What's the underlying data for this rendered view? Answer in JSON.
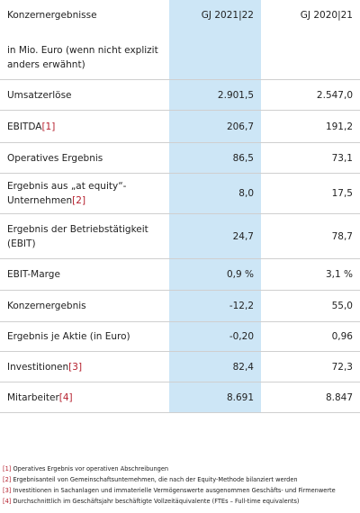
{
  "header": {
    "title": "Konzernergebnisse",
    "unit_note": "in Mio. Euro (wenn nicht explizit anders erwähnt)",
    "columns": [
      "GJ 2021|22",
      "GJ 2020|21"
    ]
  },
  "table": {
    "rows": [
      {
        "label": "Umsatzerlöse",
        "values": [
          "2.901,5",
          "2.547,0"
        ]
      },
      {
        "label": "EBITDA",
        "note": "[1]",
        "values": [
          "206,7",
          "191,2"
        ]
      },
      {
        "label": "Operatives Ergebnis",
        "values": [
          "86,5",
          "73,1"
        ]
      },
      {
        "label": "Ergebnis aus „at equity“-Unternehmen",
        "note": "[2]",
        "values": [
          "8,0",
          "17,5"
        ]
      },
      {
        "label": "Ergebnis der Betriebstätigkeit (EBIT)",
        "values": [
          "24,7",
          "78,7"
        ]
      },
      {
        "label": "EBIT-Marge",
        "values": [
          "0,9 %",
          "3,1 %"
        ]
      },
      {
        "label": "Konzernergebnis",
        "values": [
          "-12,2",
          "55,0"
        ]
      },
      {
        "label": "Ergebnis je Aktie (in Euro)",
        "values": [
          "-0,20",
          "0,96"
        ]
      },
      {
        "label": "Investitionen",
        "note": "[3]",
        "values": [
          "82,4",
          "72,3"
        ]
      },
      {
        "label": "Mitarbeiter",
        "note": "[4]",
        "values": [
          "8.691",
          "8.847"
        ]
      }
    ]
  },
  "footnotes": [
    {
      "marker": "[1]",
      "text": "Operatives Ergebnis vor operativen Abschreibungen"
    },
    {
      "marker": "[2]",
      "text": "Ergebnisanteil von Gemeinschaftsunternehmen, die nach der Equity-Methode bilanziert werden"
    },
    {
      "marker": "[3]",
      "text": "Investitionen in Sachanlagen und immaterielle Vermögenswerte ausgenommen Geschäfts- und Firmenwerte"
    },
    {
      "marker": "[4]",
      "text": "Durchschnittlich im Geschäftsjahr beschäftigte Vollzeitäquivalente (FTEs – Full-time equivalents)"
    }
  ]
}
